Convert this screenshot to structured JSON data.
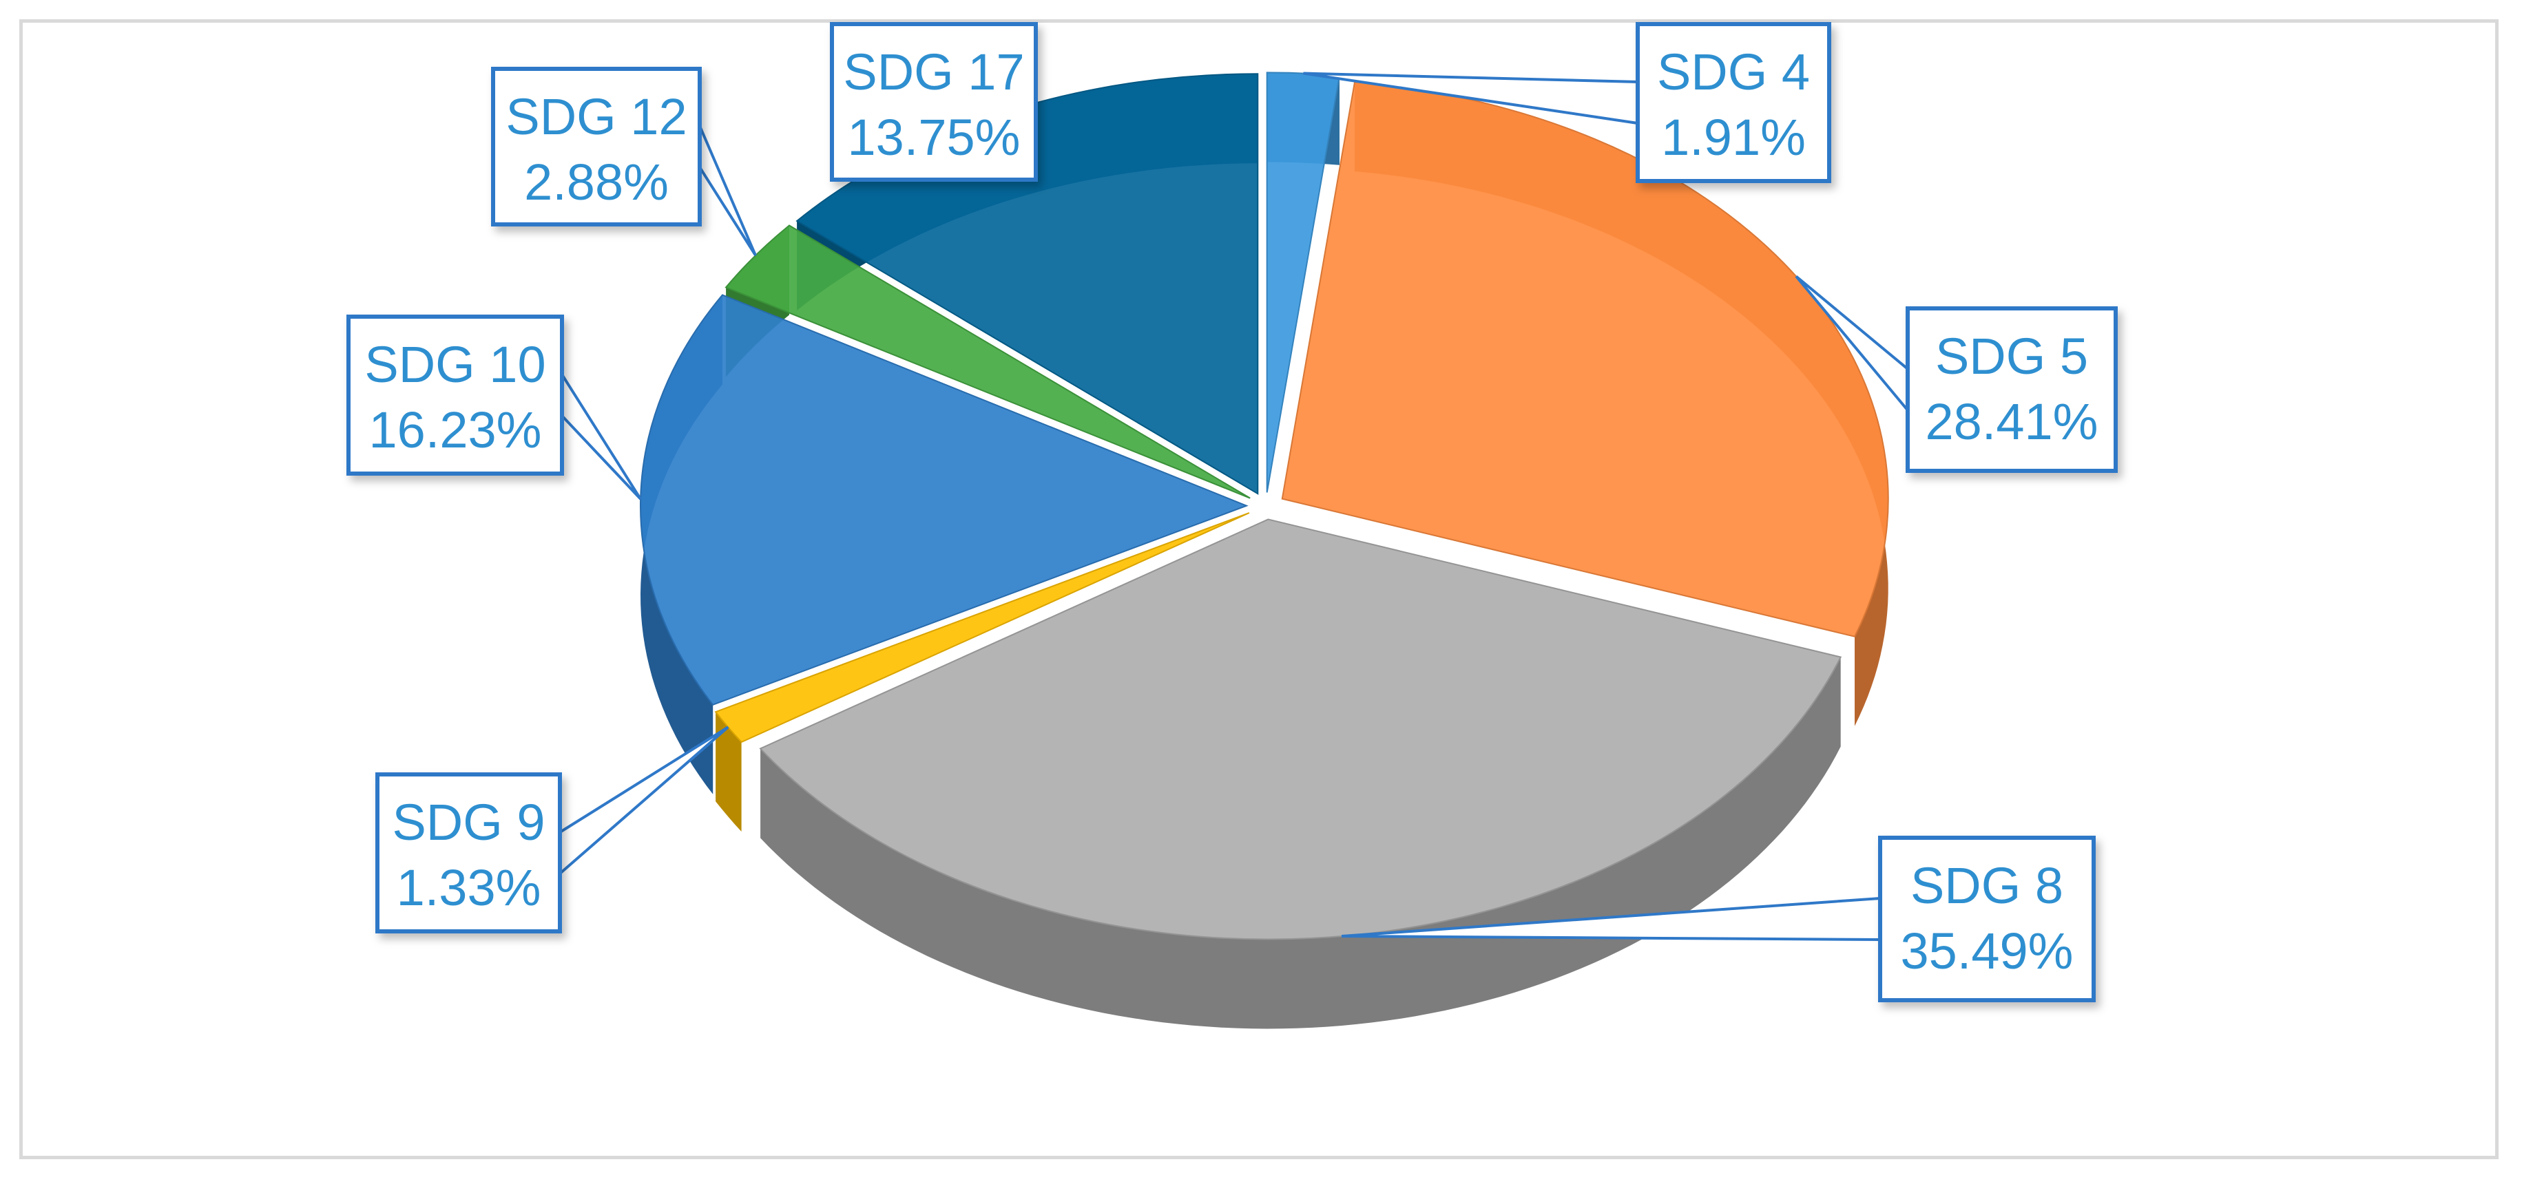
{
  "chart_data": {
    "type": "pie",
    "title": "",
    "legend": "none",
    "style": "3d-exploded-center",
    "slices": [
      {
        "label": "SDG 4",
        "value": 1.91,
        "value_label": "1.91%",
        "color": "#3d9ade"
      },
      {
        "label": "SDG 5",
        "value": 28.41,
        "value_label": "28.41%",
        "color": "#ff8c3f"
      },
      {
        "label": "SDG 8",
        "value": 35.49,
        "value_label": "35.49%",
        "color": "#aeaeae"
      },
      {
        "label": "SDG 9",
        "value": 1.33,
        "value_label": "1.33%",
        "color": "#ffc000"
      },
      {
        "label": "SDG 10",
        "value": 16.23,
        "value_label": "16.23%",
        "color": "#2f7fcb"
      },
      {
        "label": "SDG 12",
        "value": 2.88,
        "value_label": "2.88%",
        "color": "#45aa43"
      },
      {
        "label": "SDG 17",
        "value": 13.75,
        "value_label": "13.75%",
        "color": "#04679a"
      }
    ],
    "callout_border_color": "#2f78c8",
    "callout_text_color": "#2e8fd0"
  }
}
